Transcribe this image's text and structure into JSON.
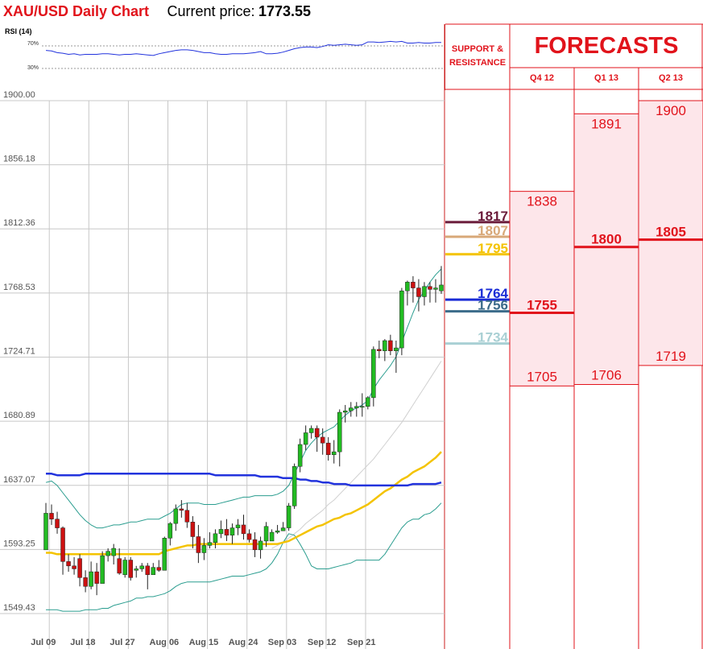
{
  "header": {
    "title": "XAU/USD Daily Chart",
    "current_price_label": "Current price:",
    "current_price_value": "1773.55"
  },
  "rsi": {
    "label": "RSI (14)",
    "level_high": "70%",
    "level_low": "30%",
    "values": [
      62,
      61,
      58,
      57,
      55,
      56,
      54,
      55,
      55,
      55,
      56,
      56,
      55,
      54,
      55,
      55,
      56,
      55,
      54,
      53,
      56,
      58,
      60,
      62,
      63,
      63,
      62,
      60,
      58,
      58,
      56,
      55,
      55,
      56,
      56,
      56,
      57,
      58,
      60,
      56,
      56,
      57,
      59,
      62,
      65,
      67,
      68,
      68,
      67,
      69,
      72,
      71,
      72,
      73,
      72,
      71,
      72,
      77,
      77,
      76,
      77,
      78,
      77,
      78,
      75,
      75,
      76,
      75,
      75,
      76,
      76
    ]
  },
  "colors": {
    "red_accent": "#e1131b",
    "bull_candle": "#22bb22",
    "bear_candle": "#cc1111",
    "bollinger": "#2a9d8f",
    "sma_long": "#2233dd",
    "sma_yellow": "#f4c300",
    "sma_grey": "#d0d0d0",
    "forecast_fill": "#fde6ea"
  },
  "chart_data": {
    "type": "candlestick",
    "title": "XAU/USD Daily Chart",
    "ylim": [
      1549.43,
      1900.0
    ],
    "y_ticks": [
      "1900.00",
      "1856.18",
      "1812.36",
      "1768.53",
      "1724.71",
      "1680.89",
      "1637.07",
      "1593.25",
      "1549.43"
    ],
    "x_tick_labels": [
      "Jul 09",
      "Jul 18",
      "Jul 27",
      "Aug 06",
      "Aug 15",
      "Aug 24",
      "Sep 03",
      "Sep 12",
      "Sep 21"
    ],
    "grid": true,
    "candles": [
      {
        "o": 1593,
        "h": 1625,
        "l": 1593,
        "c": 1618
      },
      {
        "o": 1618,
        "h": 1624,
        "l": 1610,
        "c": 1614
      },
      {
        "o": 1614,
        "h": 1619,
        "l": 1604,
        "c": 1608
      },
      {
        "o": 1608,
        "h": 1609,
        "l": 1576,
        "c": 1585
      },
      {
        "o": 1585,
        "h": 1590,
        "l": 1578,
        "c": 1582
      },
      {
        "o": 1582,
        "h": 1588,
        "l": 1576,
        "c": 1580
      },
      {
        "o": 1587,
        "h": 1590,
        "l": 1568,
        "c": 1574
      },
      {
        "o": 1574,
        "h": 1579,
        "l": 1564,
        "c": 1568
      },
      {
        "o": 1568,
        "h": 1585,
        "l": 1566,
        "c": 1578
      },
      {
        "o": 1578,
        "h": 1584,
        "l": 1562,
        "c": 1570
      },
      {
        "o": 1570,
        "h": 1592,
        "l": 1570,
        "c": 1589
      },
      {
        "o": 1589,
        "h": 1594,
        "l": 1585,
        "c": 1592
      },
      {
        "o": 1589,
        "h": 1597,
        "l": 1583,
        "c": 1594
      },
      {
        "o": 1587,
        "h": 1594,
        "l": 1576,
        "c": 1577
      },
      {
        "o": 1576,
        "h": 1588,
        "l": 1574,
        "c": 1586
      },
      {
        "o": 1586,
        "h": 1588,
        "l": 1572,
        "c": 1574
      },
      {
        "o": 1579,
        "h": 1582,
        "l": 1574,
        "c": 1580
      },
      {
        "o": 1580,
        "h": 1584,
        "l": 1578,
        "c": 1582
      },
      {
        "o": 1582,
        "h": 1584,
        "l": 1566,
        "c": 1576
      },
      {
        "o": 1576,
        "h": 1584,
        "l": 1576,
        "c": 1581
      },
      {
        "o": 1581,
        "h": 1586,
        "l": 1578,
        "c": 1579
      },
      {
        "o": 1579,
        "h": 1602,
        "l": 1579,
        "c": 1601
      },
      {
        "o": 1601,
        "h": 1612,
        "l": 1596,
        "c": 1611
      },
      {
        "o": 1611,
        "h": 1624,
        "l": 1606,
        "c": 1621
      },
      {
        "o": 1621,
        "h": 1627,
        "l": 1615,
        "c": 1620
      },
      {
        "o": 1620,
        "h": 1625,
        "l": 1608,
        "c": 1612
      },
      {
        "o": 1612,
        "h": 1616,
        "l": 1594,
        "c": 1602
      },
      {
        "o": 1602,
        "h": 1610,
        "l": 1584,
        "c": 1591
      },
      {
        "o": 1591,
        "h": 1601,
        "l": 1586,
        "c": 1596
      },
      {
        "o": 1596,
        "h": 1605,
        "l": 1594,
        "c": 1598
      },
      {
        "o": 1598,
        "h": 1607,
        "l": 1594,
        "c": 1604
      },
      {
        "o": 1604,
        "h": 1613,
        "l": 1601,
        "c": 1607
      },
      {
        "o": 1607,
        "h": 1614,
        "l": 1599,
        "c": 1603
      },
      {
        "o": 1603,
        "h": 1611,
        "l": 1597,
        "c": 1608
      },
      {
        "o": 1608,
        "h": 1614,
        "l": 1603,
        "c": 1610
      },
      {
        "o": 1610,
        "h": 1617,
        "l": 1600,
        "c": 1604
      },
      {
        "o": 1604,
        "h": 1607,
        "l": 1598,
        "c": 1600
      },
      {
        "o": 1600,
        "h": 1605,
        "l": 1588,
        "c": 1593
      },
      {
        "o": 1593,
        "h": 1602,
        "l": 1587,
        "c": 1599
      },
      {
        "o": 1599,
        "h": 1612,
        "l": 1595,
        "c": 1609
      },
      {
        "o": 1599,
        "h": 1607,
        "l": 1599,
        "c": 1605
      },
      {
        "o": 1605,
        "h": 1610,
        "l": 1604,
        "c": 1606
      },
      {
        "o": 1606,
        "h": 1612,
        "l": 1606,
        "c": 1608
      },
      {
        "o": 1608,
        "h": 1625,
        "l": 1606,
        "c": 1623
      },
      {
        "o": 1623,
        "h": 1652,
        "l": 1621,
        "c": 1650
      },
      {
        "o": 1650,
        "h": 1669,
        "l": 1646,
        "c": 1665
      },
      {
        "o": 1665,
        "h": 1678,
        "l": 1661,
        "c": 1673
      },
      {
        "o": 1673,
        "h": 1678,
        "l": 1669,
        "c": 1676
      },
      {
        "o": 1676,
        "h": 1678,
        "l": 1660,
        "c": 1670
      },
      {
        "o": 1670,
        "h": 1676,
        "l": 1658,
        "c": 1666
      },
      {
        "o": 1666,
        "h": 1670,
        "l": 1654,
        "c": 1658
      },
      {
        "o": 1658,
        "h": 1668,
        "l": 1652,
        "c": 1660
      },
      {
        "o": 1660,
        "h": 1689,
        "l": 1650,
        "c": 1687
      },
      {
        "o": 1687,
        "h": 1692,
        "l": 1680,
        "c": 1688
      },
      {
        "o": 1688,
        "h": 1694,
        "l": 1684,
        "c": 1690
      },
      {
        "o": 1690,
        "h": 1694,
        "l": 1684,
        "c": 1691
      },
      {
        "o": 1691,
        "h": 1700,
        "l": 1684,
        "c": 1691
      },
      {
        "o": 1691,
        "h": 1698,
        "l": 1689,
        "c": 1697
      },
      {
        "o": 1697,
        "h": 1732,
        "l": 1691,
        "c": 1730
      },
      {
        "o": 1730,
        "h": 1736,
        "l": 1724,
        "c": 1729
      },
      {
        "o": 1729,
        "h": 1737,
        "l": 1722,
        "c": 1736
      },
      {
        "o": 1736,
        "h": 1740,
        "l": 1726,
        "c": 1729
      },
      {
        "o": 1729,
        "h": 1736,
        "l": 1714,
        "c": 1731
      },
      {
        "o": 1731,
        "h": 1772,
        "l": 1726,
        "c": 1770
      },
      {
        "o": 1770,
        "h": 1777,
        "l": 1760,
        "c": 1776
      },
      {
        "o": 1776,
        "h": 1780,
        "l": 1762,
        "c": 1772
      },
      {
        "o": 1772,
        "h": 1778,
        "l": 1756,
        "c": 1766
      },
      {
        "o": 1766,
        "h": 1776,
        "l": 1760,
        "c": 1773
      },
      {
        "o": 1773,
        "h": 1776,
        "l": 1762,
        "c": 1771
      },
      {
        "o": 1771,
        "h": 1778,
        "l": 1762,
        "c": 1772
      },
      {
        "o": 1770,
        "h": 1787,
        "l": 1768,
        "c": 1774
      }
    ],
    "sma_long": [
      1645,
      1645,
      1644,
      1644,
      1644,
      1644,
      1644,
      1645,
      1645,
      1645,
      1645,
      1645,
      1645,
      1645,
      1645,
      1645,
      1645,
      1645,
      1645,
      1645,
      1645,
      1645,
      1645,
      1645,
      1645,
      1645,
      1645,
      1645,
      1645,
      1645,
      1644,
      1644,
      1644,
      1644,
      1644,
      1644,
      1644,
      1644,
      1643,
      1643,
      1643,
      1643,
      1642,
      1642,
      1642,
      1641,
      1641,
      1640,
      1640,
      1639,
      1639,
      1638,
      1638,
      1638,
      1637,
      1637,
      1637,
      1637,
      1637,
      1637,
      1637,
      1637,
      1637,
      1637,
      1637,
      1638,
      1638,
      1638,
      1638,
      1638,
      1639
    ],
    "sma_yellow": [
      1591,
      1591,
      1590,
      1590,
      1590,
      1590,
      1590,
      1590,
      1590,
      1590,
      1590,
      1590,
      1590,
      1590,
      1590,
      1590,
      1590,
      1590,
      1590,
      1590,
      1590,
      1592,
      1593,
      1594,
      1595,
      1596,
      1596,
      1597,
      1597,
      1597,
      1597,
      1597,
      1597,
      1597,
      1597,
      1597,
      1597,
      1597,
      1597,
      1597,
      1597,
      1597,
      1598,
      1599,
      1601,
      1603,
      1605,
      1607,
      1609,
      1610,
      1612,
      1614,
      1615,
      1617,
      1618,
      1620,
      1622,
      1624,
      1627,
      1630,
      1633,
      1635,
      1638,
      1641,
      1643,
      1646,
      1648,
      1650,
      1653,
      1656,
      1660
    ],
    "sma_grey": [
      null,
      null,
      null,
      null,
      null,
      null,
      null,
      null,
      null,
      null,
      null,
      null,
      null,
      null,
      null,
      null,
      null,
      null,
      null,
      null,
      null,
      null,
      null,
      null,
      null,
      null,
      null,
      null,
      null,
      null,
      null,
      null,
      null,
      null,
      null,
      null,
      null,
      null,
      null,
      null,
      1594,
      1596,
      1598,
      1601,
      1604,
      1607,
      1611,
      1614,
      1617,
      1620,
      1624,
      1627,
      1631,
      1635,
      1639,
      1643,
      1647,
      1651,
      1655,
      1660,
      1665,
      1670,
      1675,
      1680,
      1686,
      1692,
      1698,
      1704,
      1710,
      1716,
      1722
    ],
    "bollinger_upper": [
      1639,
      1640,
      1637,
      1632,
      1627,
      1622,
      1617,
      1613,
      1610,
      1608,
      1608,
      1609,
      1610,
      1610,
      1611,
      1612,
      1612,
      1613,
      1614,
      1614,
      1614,
      1616,
      1618,
      1621,
      1624,
      1625,
      1625,
      1625,
      1624,
      1624,
      1624,
      1625,
      1626,
      1627,
      1628,
      1629,
      1629,
      1630,
      1630,
      1630,
      1630,
      1631,
      1633,
      1637,
      1645,
      1653,
      1661,
      1666,
      1670,
      1673,
      1675,
      1677,
      1681,
      1685,
      1688,
      1690,
      1692,
      1695,
      1703,
      1709,
      1714,
      1719,
      1725,
      1735,
      1745,
      1755,
      1764,
      1770,
      1776,
      1781,
      1785
    ],
    "bollinger_lower": [
      1552,
      1552,
      1552,
      1551,
      1551,
      1551,
      1551,
      1552,
      1552,
      1552,
      1553,
      1553,
      1555,
      1556,
      1557,
      1558,
      1560,
      1560,
      1561,
      1561,
      1562,
      1563,
      1565,
      1568,
      1570,
      1571,
      1571,
      1571,
      1571,
      1571,
      1572,
      1573,
      1574,
      1575,
      1575,
      1575,
      1576,
      1577,
      1578,
      1580,
      1584,
      1590,
      1598,
      1604,
      1603,
      1597,
      1590,
      1582,
      1580,
      1580,
      1580,
      1581,
      1582,
      1583,
      1584,
      1586,
      1586,
      1586,
      1586,
      1586,
      1590,
      1596,
      1602,
      1608,
      1612,
      1614,
      1614,
      1617,
      1618,
      1621,
      1625
    ]
  },
  "support_resistance": {
    "header_line1": "SUPPORT &",
    "header_line2": "RESISTANCE",
    "levels": [
      {
        "value": 1817,
        "label": "1817",
        "color": "#6a1b3a"
      },
      {
        "value": 1807,
        "label": "1807",
        "color": "#d8a878"
      },
      {
        "value": 1795,
        "label": "1795",
        "color": "#f4c300"
      },
      {
        "value": 1764,
        "label": "1764",
        "color": "#1a2cd6"
      },
      {
        "value": 1756,
        "label": "1756",
        "color": "#3b6b8a"
      },
      {
        "value": 1734,
        "label": "1734",
        "color": "#a9d0d4"
      }
    ]
  },
  "forecasts": {
    "title": "FORECASTS",
    "quarters": [
      {
        "label": "Q4 12",
        "high": 1838,
        "mid": 1755,
        "low": 1705,
        "high_label": "1838",
        "mid_label": "1755",
        "low_label": "1705"
      },
      {
        "label": "Q1 13",
        "high": 1891,
        "mid": 1800,
        "low": 1706,
        "high_label": "1891",
        "mid_label": "1800",
        "low_label": "1706"
      },
      {
        "label": "Q2 13",
        "high": 1900,
        "mid": 1805,
        "low": 1719,
        "high_label": "1900",
        "mid_label": "1805",
        "low_label": "1719"
      }
    ]
  }
}
